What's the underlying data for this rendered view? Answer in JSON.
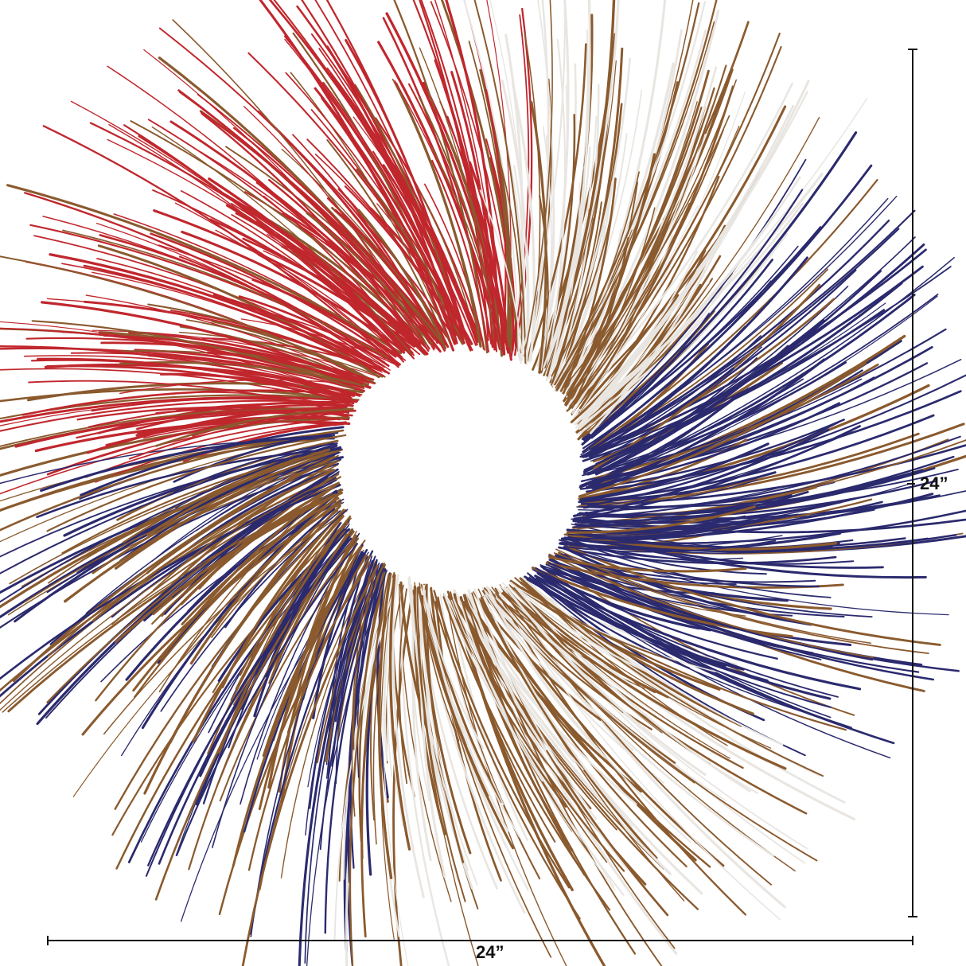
{
  "product": {
    "height_label": "24”",
    "width_label": "24”"
  },
  "colors": {
    "red": "#c0272d",
    "white": "#f4f4f4",
    "blue": "#2b2a6e",
    "brown": "#8a5a2e",
    "dimension_line": "#111111"
  }
}
